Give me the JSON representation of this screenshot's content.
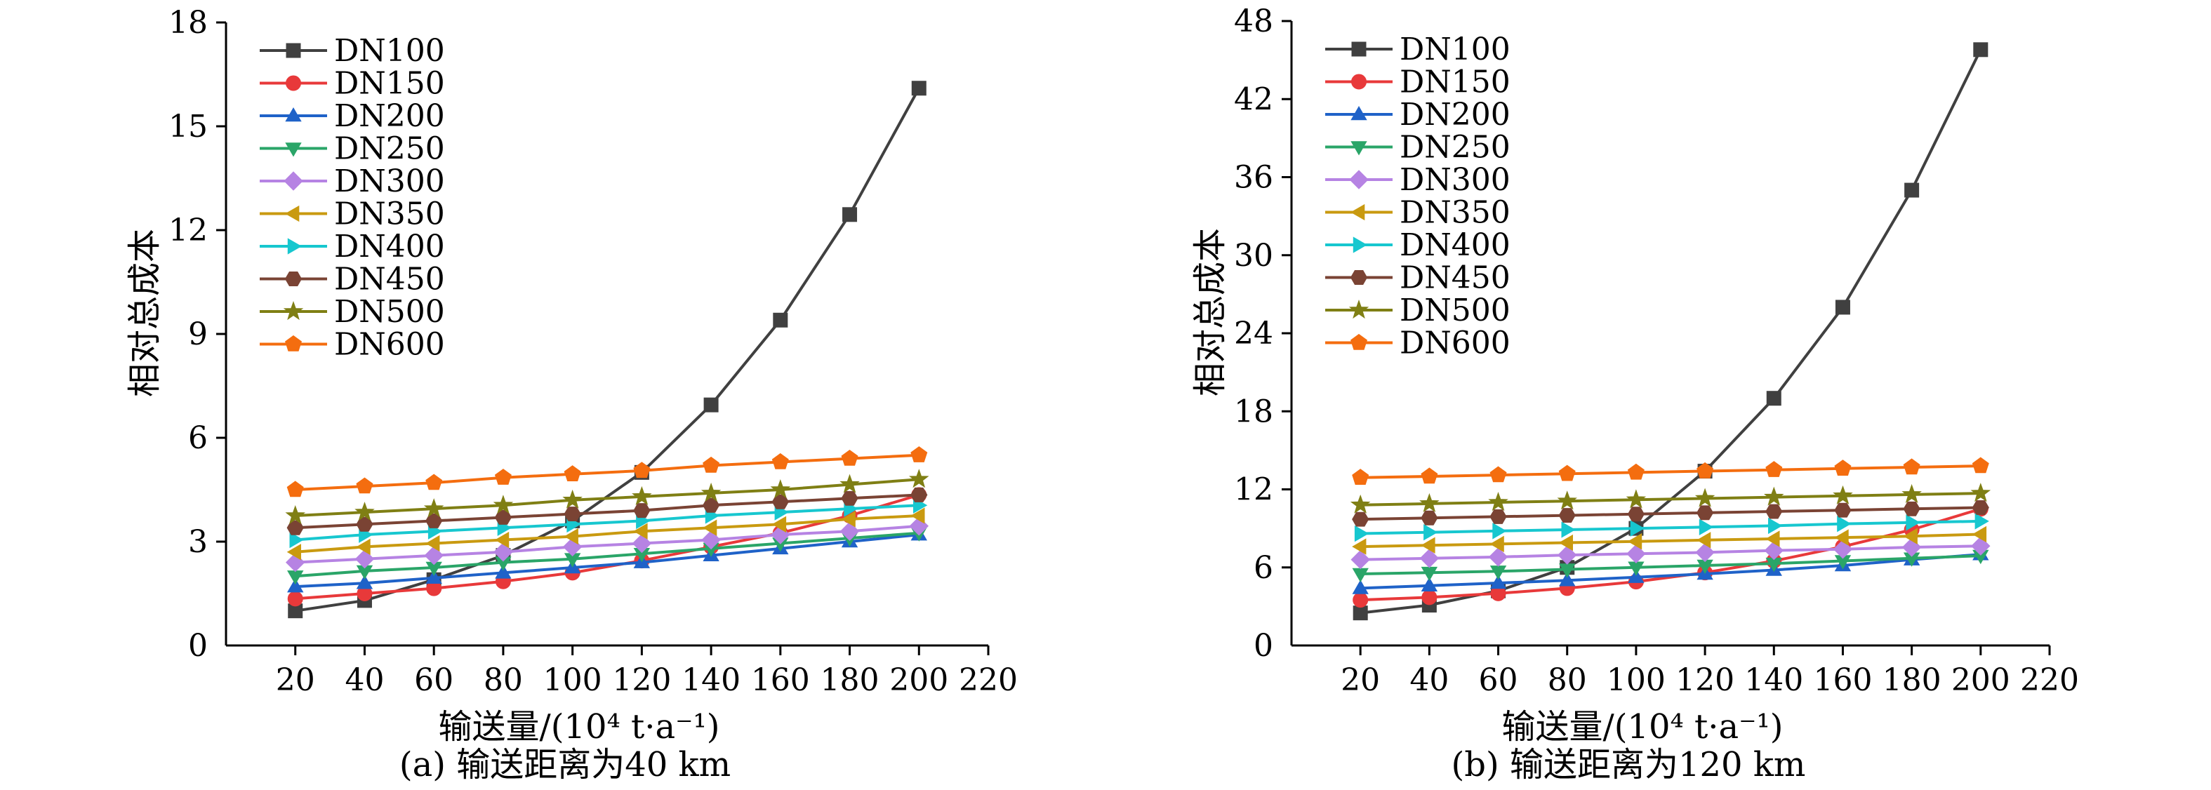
{
  "colors": {
    "DN100": "#404040",
    "DN150": "#e8393a",
    "DN200": "#1f62c8",
    "DN250": "#2aa568",
    "DN300": "#b683e3",
    "DN350": "#c99a10",
    "DN400": "#17c7cf",
    "DN450": "#7a4334",
    "DN500": "#7f7f14",
    "DN600": "#f46d0f"
  },
  "markers": {
    "DN100": "square",
    "DN150": "circle",
    "DN200": "triangle-up",
    "DN250": "triangle-down",
    "DN300": "diamond",
    "DN350": "triangle-left",
    "DN400": "triangle-right",
    "DN450": "hexagon",
    "DN500": "star",
    "DN600": "pentagon"
  },
  "chart_data": [
    {
      "type": "line",
      "caption": "(a) 输送距离为40 km",
      "xlabel": "输送量/(10⁴ t·a⁻¹)",
      "ylabel": "相对总成本",
      "xlim": [
        0,
        220
      ],
      "ylim": [
        0,
        18
      ],
      "x_ticks": [
        20,
        40,
        60,
        80,
        100,
        120,
        140,
        160,
        180,
        200,
        220
      ],
      "y_ticks": [
        0,
        3,
        6,
        9,
        12,
        15,
        18
      ],
      "legend_placement": "top-left",
      "grid": false,
      "x": [
        20,
        40,
        60,
        80,
        100,
        120,
        140,
        160,
        180,
        200
      ],
      "series": [
        {
          "name": "DN100",
          "values": [
            1.0,
            1.3,
            1.9,
            2.6,
            3.6,
            5.0,
            6.95,
            9.4,
            12.45,
            16.1
          ]
        },
        {
          "name": "DN150",
          "values": [
            1.35,
            1.5,
            1.65,
            1.85,
            2.1,
            2.45,
            2.85,
            3.25,
            3.75,
            4.35
          ]
        },
        {
          "name": "DN200",
          "values": [
            1.7,
            1.8,
            1.95,
            2.1,
            2.25,
            2.4,
            2.6,
            2.8,
            3.0,
            3.2
          ]
        },
        {
          "name": "DN250",
          "values": [
            2.0,
            2.15,
            2.25,
            2.4,
            2.5,
            2.65,
            2.8,
            2.95,
            3.1,
            3.25
          ]
        },
        {
          "name": "DN300",
          "values": [
            2.4,
            2.5,
            2.6,
            2.7,
            2.85,
            2.95,
            3.05,
            3.2,
            3.3,
            3.45
          ]
        },
        {
          "name": "DN350",
          "values": [
            2.7,
            2.85,
            2.95,
            3.05,
            3.15,
            3.3,
            3.4,
            3.5,
            3.65,
            3.75
          ]
        },
        {
          "name": "DN400",
          "values": [
            3.05,
            3.2,
            3.3,
            3.4,
            3.5,
            3.6,
            3.75,
            3.85,
            3.95,
            4.05
          ]
        },
        {
          "name": "DN450",
          "values": [
            3.4,
            3.5,
            3.6,
            3.7,
            3.8,
            3.9,
            4.05,
            4.15,
            4.25,
            4.35
          ]
        },
        {
          "name": "DN500",
          "values": [
            3.75,
            3.85,
            3.95,
            4.05,
            4.2,
            4.3,
            4.4,
            4.5,
            4.65,
            4.8
          ]
        },
        {
          "name": "DN600",
          "values": [
            4.5,
            4.6,
            4.7,
            4.85,
            4.95,
            5.05,
            5.2,
            5.3,
            5.4,
            5.5
          ]
        }
      ]
    },
    {
      "type": "line",
      "caption": "(b) 输送距离为120 km",
      "xlabel": "输送量/(10⁴ t·a⁻¹)",
      "ylabel": "相对总成本",
      "xlim": [
        0,
        220
      ],
      "ylim": [
        0,
        48
      ],
      "x_ticks": [
        20,
        40,
        60,
        80,
        100,
        120,
        140,
        160,
        180,
        200,
        220
      ],
      "y_ticks": [
        0,
        6,
        12,
        18,
        24,
        30,
        36,
        42,
        48
      ],
      "legend_placement": "top-left",
      "grid": false,
      "x": [
        20,
        40,
        60,
        80,
        100,
        120,
        140,
        160,
        180,
        200
      ],
      "series": [
        {
          "name": "DN100",
          "values": [
            2.5,
            3.1,
            4.2,
            6.0,
            9.0,
            13.4,
            19.0,
            26.0,
            35.0,
            45.8
          ]
        },
        {
          "name": "DN150",
          "values": [
            3.5,
            3.7,
            4.0,
            4.4,
            4.9,
            5.6,
            6.5,
            7.6,
            8.9,
            10.5
          ]
        },
        {
          "name": "DN200",
          "values": [
            4.4,
            4.6,
            4.8,
            5.0,
            5.25,
            5.5,
            5.8,
            6.15,
            6.6,
            7.0
          ]
        },
        {
          "name": "DN250",
          "values": [
            5.5,
            5.6,
            5.7,
            5.85,
            6.0,
            6.15,
            6.3,
            6.5,
            6.7,
            6.9
          ]
        },
        {
          "name": "DN300",
          "values": [
            6.6,
            6.7,
            6.8,
            6.95,
            7.05,
            7.15,
            7.3,
            7.4,
            7.55,
            7.65
          ]
        },
        {
          "name": "DN350",
          "values": [
            7.6,
            7.7,
            7.8,
            7.9,
            8.0,
            8.1,
            8.2,
            8.3,
            8.4,
            8.55
          ]
        },
        {
          "name": "DN400",
          "values": [
            8.6,
            8.7,
            8.8,
            8.9,
            9.0,
            9.1,
            9.2,
            9.35,
            9.45,
            9.55
          ]
        },
        {
          "name": "DN450",
          "values": [
            9.7,
            9.8,
            9.9,
            10.0,
            10.1,
            10.2,
            10.3,
            10.4,
            10.5,
            10.6
          ]
        },
        {
          "name": "DN500",
          "values": [
            10.8,
            10.9,
            11.0,
            11.1,
            11.2,
            11.3,
            11.4,
            11.5,
            11.6,
            11.7
          ]
        },
        {
          "name": "DN600",
          "values": [
            12.9,
            13.0,
            13.1,
            13.2,
            13.3,
            13.4,
            13.5,
            13.6,
            13.7,
            13.8
          ]
        }
      ]
    }
  ]
}
